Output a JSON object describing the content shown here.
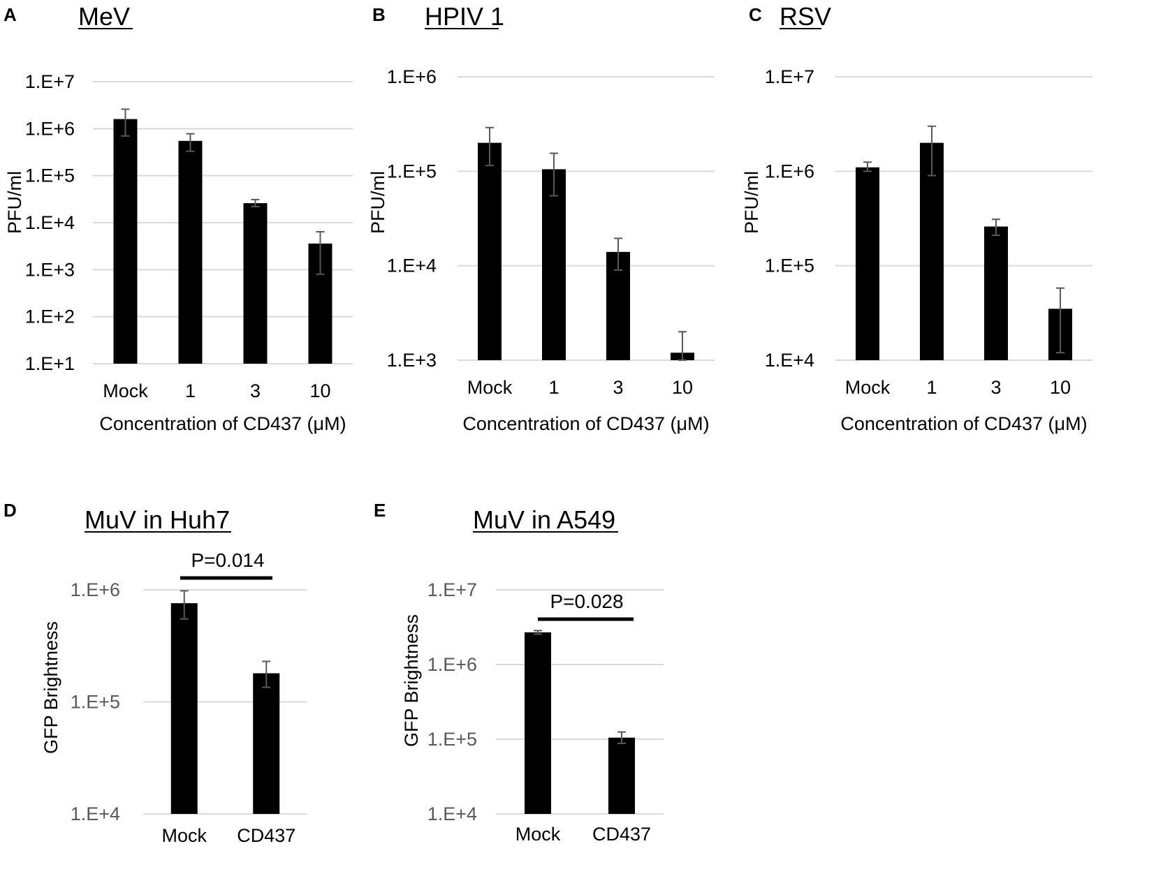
{
  "chart_data": [
    {
      "id": "A",
      "letter": "A",
      "title": "MeV",
      "type": "bar",
      "log_scale": true,
      "ylim": [
        10,
        10000000
      ],
      "yticks": [
        "1.E+1",
        "1.E+2",
        "1.E+3",
        "1.E+4",
        "1.E+5",
        "1.E+6",
        "1.E+7"
      ],
      "ylabel": "PFU/ml",
      "xlabel": "Concentration of CD437 (μM)",
      "categories": [
        "Mock",
        "1",
        "3",
        "10"
      ],
      "values": [
        1600000,
        550000,
        26000,
        3600
      ],
      "err_low": [
        700000,
        330000,
        22000,
        800
      ],
      "err_high": [
        2600000,
        780000,
        31000,
        6400
      ]
    },
    {
      "id": "B",
      "letter": "B",
      "title": "HPIV 1",
      "type": "bar",
      "log_scale": true,
      "ylim": [
        1000,
        1000000
      ],
      "yticks": [
        "1.E+3",
        "1.E+4",
        "1.E+5",
        "1.E+6"
      ],
      "ylabel": "PFU/ml",
      "xlabel": "Concentration of CD437 (μM)",
      "categories": [
        "Mock",
        "1",
        "3",
        "10"
      ],
      "values": [
        200000,
        105000,
        14000,
        1200
      ],
      "err_low": [
        115000,
        55000,
        9000,
        1000
      ],
      "err_high": [
        290000,
        155000,
        19500,
        2000
      ]
    },
    {
      "id": "C",
      "letter": "C",
      "title": "RSV",
      "type": "bar",
      "log_scale": true,
      "ylim": [
        10000,
        10000000
      ],
      "yticks": [
        "1.E+4",
        "1.E+5",
        "1.E+6",
        "1.E+7"
      ],
      "ylabel": "PFU/ml",
      "xlabel": "Concentration of CD437 (μM)",
      "categories": [
        "Mock",
        "1",
        "3",
        "10"
      ],
      "values": [
        1100000,
        2000000,
        260000,
        35000
      ],
      "err_low": [
        1000000,
        900000,
        210000,
        12000
      ],
      "err_high": [
        1250000,
        3000000,
        310000,
        58000
      ]
    },
    {
      "id": "D",
      "letter": "D",
      "title": "MuV in Huh7",
      "type": "bar",
      "log_scale": true,
      "ylim": [
        10000,
        1000000
      ],
      "yticks": [
        "1.E+4",
        "1.E+5",
        "1.E+6"
      ],
      "ylabel": "GFP Brightness",
      "xlabel": "",
      "categories": [
        "Mock",
        "CD437"
      ],
      "values": [
        760000,
        180000
      ],
      "err_low": [
        550000,
        135000
      ],
      "err_high": [
        980000,
        230000
      ],
      "significance": "P=0.014"
    },
    {
      "id": "E",
      "letter": "E",
      "title": "MuV in A549",
      "type": "bar",
      "log_scale": true,
      "ylim": [
        10000,
        10000000
      ],
      "yticks": [
        "1.E+4",
        "1.E+5",
        "1.E+6",
        "1.E+7"
      ],
      "ylabel": "GFP Brightness",
      "xlabel": "",
      "categories": [
        "Mock",
        "CD437"
      ],
      "values": [
        2700000,
        105000
      ],
      "err_low": [
        2550000,
        88000
      ],
      "err_high": [
        2850000,
        125000
      ],
      "significance": "P=0.028"
    }
  ]
}
